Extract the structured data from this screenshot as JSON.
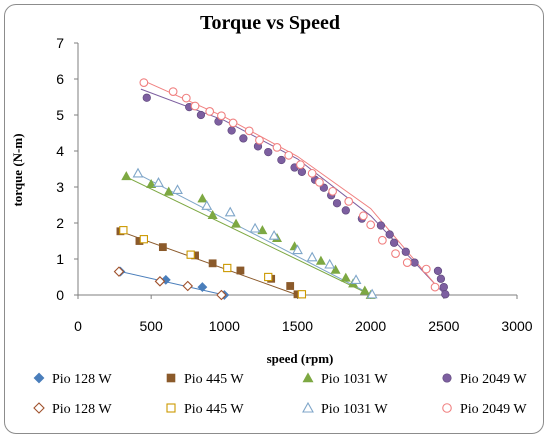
{
  "chart_data": {
    "type": "scatter",
    "title": "Torque vs Speed",
    "xlabel": "speed (rpm)",
    "ylabel": "torque (N-m)",
    "xlim": [
      0,
      3000
    ],
    "ylim": [
      0,
      7
    ],
    "x_ticks": [
      "0",
      "500",
      "1000",
      "1500",
      "2000",
      "2500",
      "3000"
    ],
    "y_ticks": [
      "0",
      "1",
      "2",
      "3",
      "4",
      "5",
      "6",
      "7"
    ],
    "grid": false,
    "legend_position": "bottom",
    "series": [
      {
        "name": "Pio 128 W",
        "marker": "diamond",
        "filled": true,
        "color": "#4a7ebb",
        "x": [
          290,
          600,
          850,
          1000
        ],
        "y": [
          0.65,
          0.42,
          0.22,
          0.0
        ],
        "trend": [
          [
            270,
            0.67
          ],
          [
            1000,
            0.0
          ]
        ]
      },
      {
        "name": "Pio 445 W",
        "marker": "square",
        "filled": true,
        "color": "#8b5a2b",
        "x": [
          290,
          420,
          580,
          800,
          920,
          1110,
          1320,
          1450,
          1500
        ],
        "y": [
          1.77,
          1.5,
          1.33,
          1.1,
          0.88,
          0.68,
          0.45,
          0.25,
          0.02
        ],
        "trend": [
          [
            280,
            1.78
          ],
          [
            1500,
            0.0
          ]
        ]
      },
      {
        "name": "Pio 1031 W",
        "marker": "triangle",
        "filled": true,
        "color": "#7da842",
        "x": [
          330,
          500,
          620,
          850,
          920,
          1080,
          1260,
          1360,
          1480,
          1660,
          1760,
          1830,
          1880,
          1960,
          2000
        ],
        "y": [
          3.3,
          3.08,
          2.87,
          2.68,
          2.22,
          1.98,
          1.8,
          1.58,
          1.35,
          0.95,
          0.7,
          0.48,
          0.32,
          0.12,
          0.0
        ],
        "trend": [
          [
            320,
            3.3
          ],
          [
            2000,
            0.0
          ]
        ]
      },
      {
        "name": "Pio 2049 W",
        "marker": "circle",
        "filled": true,
        "color": "#7d5fa0",
        "x": [
          470,
          760,
          840,
          960,
          1050,
          1130,
          1230,
          1300,
          1390,
          1480,
          1530,
          1620,
          1680,
          1730,
          1770,
          1830,
          1940,
          2070,
          2130,
          2160,
          2240,
          2300,
          2460,
          2480,
          2500,
          2510
        ],
        "y": [
          5.48,
          5.22,
          5.0,
          4.82,
          4.57,
          4.35,
          4.13,
          3.97,
          3.75,
          3.54,
          3.42,
          3.2,
          2.98,
          2.77,
          2.55,
          2.35,
          2.12,
          1.93,
          1.68,
          1.45,
          1.2,
          0.9,
          0.67,
          0.45,
          0.22,
          0.02
        ],
        "trend": [
          [
            430,
            5.72
          ],
          [
            1000,
            4.85
          ],
          [
            1500,
            3.78
          ],
          [
            2000,
            2.2
          ],
          [
            2510,
            0.0
          ]
        ]
      },
      {
        "name": "Pio 128 W",
        "marker": "diamond",
        "filled": false,
        "color": "#a0522d",
        "x": [
          280,
          560,
          750,
          980
        ],
        "y": [
          0.65,
          0.38,
          0.25,
          0.0
        ],
        "trend": []
      },
      {
        "name": "Pio 445 W",
        "marker": "square",
        "filled": false,
        "color": "#cc9900",
        "x": [
          310,
          450,
          770,
          1020,
          1300,
          1530
        ],
        "y": [
          1.8,
          1.55,
          1.12,
          0.75,
          0.5,
          0.02
        ],
        "trend": []
      },
      {
        "name": "Pio 1031 W",
        "marker": "triangle",
        "filled": false,
        "color": "#7fa6c9",
        "x": [
          410,
          550,
          680,
          880,
          1040,
          1210,
          1340,
          1500,
          1600,
          1720,
          1900,
          2010
        ],
        "y": [
          3.38,
          3.12,
          2.92,
          2.48,
          2.3,
          1.85,
          1.65,
          1.25,
          1.05,
          0.85,
          0.42,
          0.02
        ],
        "trend": [
          [
            400,
            3.38
          ],
          [
            2010,
            0.0
          ]
        ]
      },
      {
        "name": "Pio 2049 W",
        "marker": "circle",
        "filled": false,
        "color": "#f08080",
        "x": [
          450,
          650,
          740,
          800,
          900,
          980,
          1060,
          1170,
          1240,
          1360,
          1440,
          1520,
          1600,
          1650,
          1740,
          1850,
          1950,
          2000,
          2080,
          2170,
          2250,
          2380,
          2440
        ],
        "y": [
          5.9,
          5.65,
          5.47,
          5.25,
          5.1,
          4.98,
          4.78,
          4.56,
          4.3,
          4.1,
          3.88,
          3.62,
          3.38,
          3.13,
          2.88,
          2.6,
          2.2,
          1.95,
          1.52,
          1.15,
          0.9,
          0.72,
          0.22
        ],
        "trend": [
          [
            450,
            5.95
          ],
          [
            1000,
            4.95
          ],
          [
            1500,
            3.85
          ],
          [
            2000,
            2.4
          ],
          [
            2440,
            0.3
          ]
        ]
      }
    ]
  }
}
